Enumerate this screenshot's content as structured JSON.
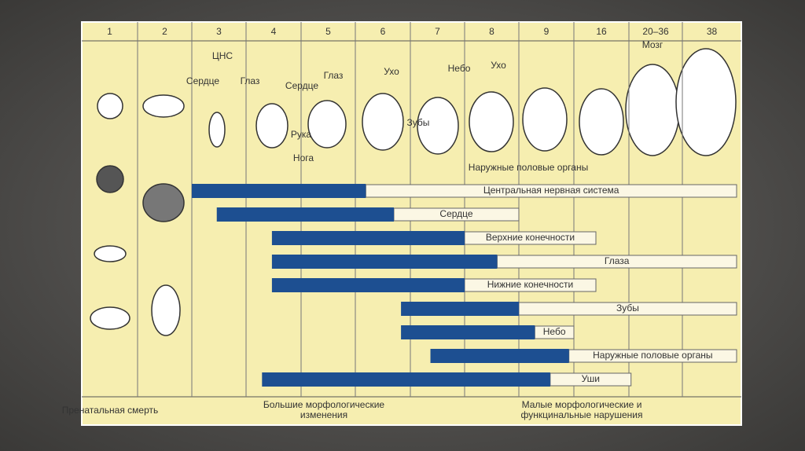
{
  "header": {
    "columns": [
      "1",
      "2",
      "3",
      "4",
      "5",
      "6",
      "7",
      "8",
      "9",
      "16",
      "20–36",
      "38"
    ]
  },
  "rows": [
    {
      "label": "Центральная нервная система",
      "sensitive": [
        2,
        5.19
      ],
      "less_sensitive_end": 11.92
    },
    {
      "label": "Сердце",
      "sensitive": [
        2.46,
        5.7
      ],
      "less_sensitive_end": 8
    },
    {
      "label": "Верхние конечности",
      "sensitive": [
        3.47,
        7
      ],
      "less_sensitive_end": 9.4
    },
    {
      "label": "Глаза",
      "sensitive": [
        3.47,
        7.6
      ],
      "less_sensitive_end": 11.92
    },
    {
      "label": "Нижние конечности",
      "sensitive": [
        3.47,
        7
      ],
      "less_sensitive_end": 9.4
    },
    {
      "label": "Зубы",
      "sensitive": [
        5.83,
        8
      ],
      "less_sensitive_end": 11.92
    },
    {
      "label": "Небо",
      "sensitive": [
        5.83,
        8.29
      ],
      "less_sensitive_end": 9
    },
    {
      "label": "Наружные половые органы",
      "sensitive": [
        6.37,
        8.91
      ],
      "less_sensitive_end": 11.92
    },
    {
      "label": "Уши",
      "sensitive": [
        3.29,
        8.57
      ],
      "less_sensitive_end": 10.04
    }
  ],
  "embryo_labels": [
    "ЦНС",
    "Сердце",
    "Глаз",
    "Сердце",
    "Глаз",
    "Рука",
    "Нога",
    "Ухо",
    "Зубы",
    "Небо",
    "Ухо",
    "Наружные половые органы",
    "Мозг"
  ],
  "footer": [
    "Пренатальная смерть",
    "Большие морфологические изменения",
    "Малые морфологические и функцинальные нарушения"
  ]
}
